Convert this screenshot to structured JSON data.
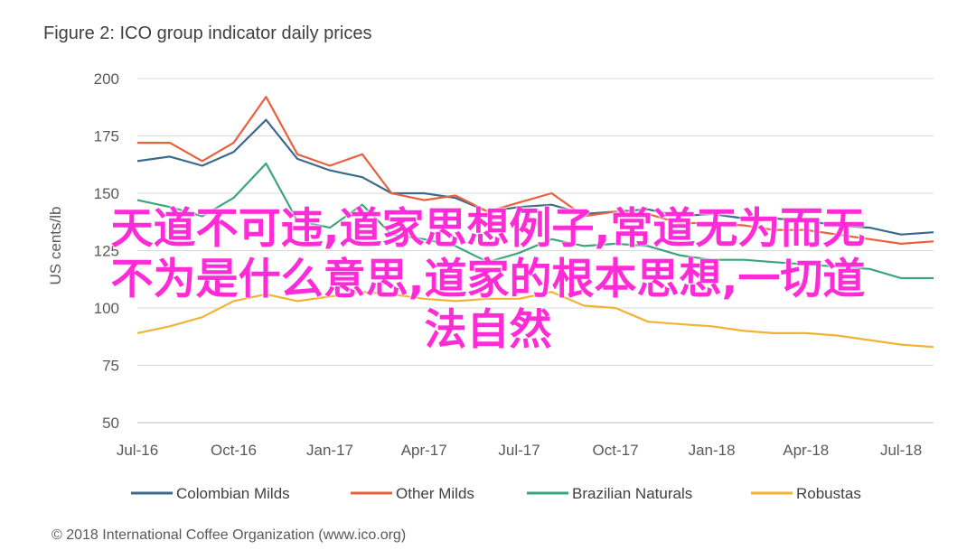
{
  "chart_data": {
    "type": "line",
    "title": "Figure 2: ICO group indicator daily prices",
    "ylabel": "US cents/lb",
    "xlabel": "",
    "ylim": [
      50,
      200
    ],
    "yticks": [
      50,
      75,
      100,
      125,
      150,
      175,
      200
    ],
    "xlim": [
      "2016-07-01",
      "2018-08-01"
    ],
    "x_tick_labels": [
      "Jul-16",
      "Oct-16",
      "Jan-17",
      "Apr-17",
      "Jul-17",
      "Oct-17",
      "Jan-18",
      "Apr-18",
      "Jul-18"
    ],
    "x_tick_dates": [
      "2016-07-01",
      "2016-10-01",
      "2017-01-01",
      "2017-04-01",
      "2017-07-01",
      "2017-10-01",
      "2018-01-01",
      "2018-04-01",
      "2018-07-01"
    ],
    "grid": true,
    "legend_position": "bottom",
    "x": [
      "2016-07-01",
      "2016-08-01",
      "2016-09-01",
      "2016-10-01",
      "2016-11-01",
      "2016-12-01",
      "2017-01-01",
      "2017-02-01",
      "2017-03-01",
      "2017-04-01",
      "2017-05-01",
      "2017-06-01",
      "2017-07-01",
      "2017-08-01",
      "2017-09-01",
      "2017-10-01",
      "2017-11-01",
      "2017-12-01",
      "2018-01-01",
      "2018-02-01",
      "2018-03-01",
      "2018-04-01",
      "2018-05-01",
      "2018-06-01",
      "2018-07-01",
      "2018-08-01"
    ],
    "series": [
      {
        "name": "Colombian Milds",
        "color": "#3b6a8a",
        "values": [
          164,
          166,
          162,
          168,
          182,
          165,
          160,
          157,
          150,
          150,
          148,
          142,
          144,
          145,
          141,
          142,
          143,
          140,
          141,
          139,
          139,
          138,
          136,
          135,
          132,
          133
        ]
      },
      {
        "name": "Other Milds",
        "color": "#e8603c",
        "values": [
          172,
          172,
          164,
          172,
          192,
          167,
          162,
          167,
          150,
          147,
          149,
          142,
          146,
          150,
          140,
          142,
          141,
          137,
          137,
          136,
          134,
          134,
          132,
          130,
          128,
          129
        ]
      },
      {
        "name": "Brazilian Naturals",
        "color": "#3aa57b",
        "values": [
          147,
          144,
          140,
          148,
          163,
          138,
          135,
          145,
          132,
          130,
          127,
          120,
          124,
          130,
          127,
          128,
          127,
          123,
          121,
          121,
          120,
          119,
          118,
          117,
          113,
          113
        ]
      },
      {
        "name": "Robustas",
        "color": "#f2b233",
        "values": [
          89,
          92,
          96,
          103,
          106,
          103,
          105,
          107,
          106,
          104,
          103,
          104,
          104,
          107,
          101,
          100,
          94,
          93,
          92,
          90,
          89,
          89,
          88,
          86,
          84,
          83
        ]
      }
    ],
    "source": "© 2018 International Coffee Organization (www.ico.org)"
  },
  "overlay": {
    "line1": "天道不可违,道家思想例子,常道无为而无",
    "line2": "不为是什么意思,道家的根本思想,一切道",
    "line3": "法自然",
    "color": "#ff2bd6"
  }
}
